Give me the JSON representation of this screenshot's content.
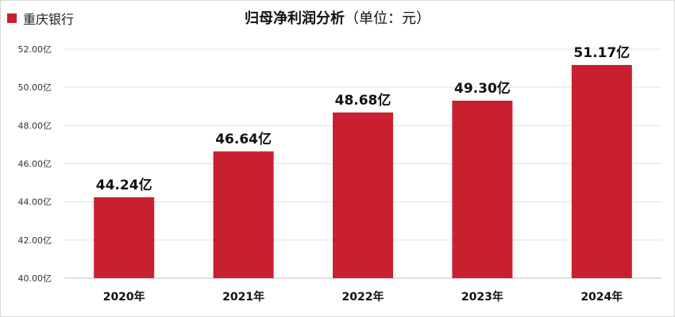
{
  "legend": {
    "label": "重庆银行",
    "color": "#c8202f"
  },
  "title": {
    "main": "归母净利润分析",
    "unit": "（单位：元）"
  },
  "chart_data": {
    "type": "bar",
    "categories": [
      "2020年",
      "2021年",
      "2022年",
      "2023年",
      "2024年"
    ],
    "series": [
      {
        "name": "重庆银行",
        "values": [
          44.24,
          46.64,
          48.68,
          49.3,
          51.17
        ],
        "color": "#c8202f"
      }
    ],
    "data_labels": [
      "44.24亿",
      "46.64亿",
      "48.68亿",
      "49.30亿",
      "51.17亿"
    ],
    "y_ticks": [
      40,
      42,
      44,
      46,
      48,
      50,
      52
    ],
    "y_tick_labels": [
      "40.00亿",
      "42.00亿",
      "44.00亿",
      "46.00亿",
      "48.00亿",
      "50.00亿",
      "52.00亿"
    ],
    "ylim": [
      40,
      52
    ],
    "grid": true,
    "legend_position": "top-left"
  }
}
